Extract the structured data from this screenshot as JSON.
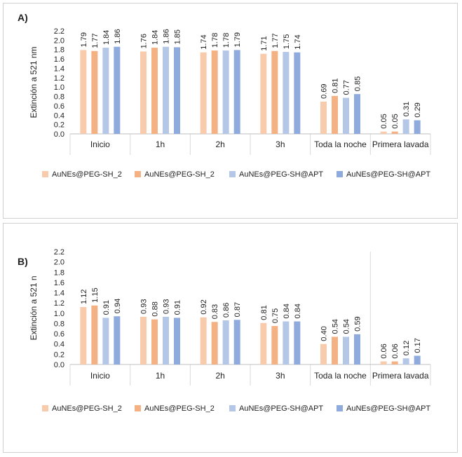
{
  "colors": {
    "series": [
      "#f8cbad",
      "#f4b183",
      "#b4c7e7",
      "#8faadc"
    ],
    "grid": "#d9d9d9",
    "axis": "#bfbfbf"
  },
  "chart_data": [
    {
      "panel": "A)",
      "type": "bar",
      "ylabel": "Extinción a 521 nm",
      "ylim": [
        0,
        2.2
      ],
      "ytick_step": 0.2,
      "categories": [
        "Inicio",
        "1h",
        "2h",
        "3h",
        "Toda la noche",
        "Primera lavada"
      ],
      "series": [
        {
          "name": "AuNEs@PEG-SH_2",
          "values": [
            1.79,
            1.76,
            1.74,
            1.71,
            0.69,
            0.05
          ]
        },
        {
          "name": "AuNEs@PEG-SH_2",
          "values": [
            1.77,
            1.84,
            1.78,
            1.77,
            0.81,
            0.05
          ]
        },
        {
          "name": "AuNEs@PEG-SH@APT",
          "values": [
            1.84,
            1.86,
            1.78,
            1.75,
            0.77,
            0.31
          ]
        },
        {
          "name": "AuNEs@PEG-SH@APT",
          "values": [
            1.86,
            1.85,
            1.79,
            1.74,
            0.85,
            0.29
          ]
        }
      ],
      "legend": "bottom",
      "grid": "vertical separators"
    },
    {
      "panel": "B)",
      "type": "bar",
      "ylabel": "Extinción a 521 n",
      "ylim": [
        0,
        2.2
      ],
      "ytick_step": 0.2,
      "categories": [
        "Inicio",
        "1h",
        "2h",
        "3h",
        "Toda la noche",
        "Primera lavada"
      ],
      "series": [
        {
          "name": "AuNEs@PEG-SH_2",
          "values": [
            1.12,
            0.93,
            0.92,
            0.81,
            0.4,
            0.06
          ]
        },
        {
          "name": "AuNEs@PEG-SH_2",
          "values": [
            1.15,
            0.88,
            0.83,
            0.75,
            0.54,
            0.06
          ]
        },
        {
          "name": "AuNEs@PEG-SH@APT",
          "values": [
            0.91,
            0.93,
            0.86,
            0.84,
            0.54,
            0.12
          ]
        },
        {
          "name": "AuNEs@PEG-SH@APT",
          "values": [
            0.94,
            0.91,
            0.87,
            0.84,
            0.59,
            0.17
          ]
        }
      ],
      "legend": "bottom",
      "grid": "vertical separators"
    }
  ]
}
